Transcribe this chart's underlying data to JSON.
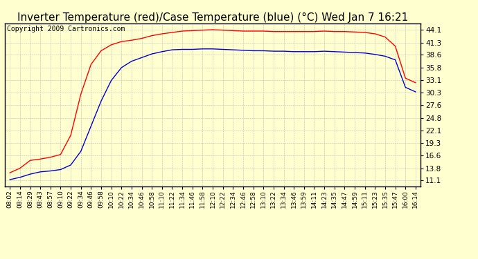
{
  "title": "Inverter Temperature (red)/Case Temperature (blue) (°C) Wed Jan 7 16:21",
  "copyright": "Copyright 2009 Cartronics.com",
  "yticks": [
    11.1,
    13.8,
    16.6,
    19.3,
    22.1,
    24.8,
    27.6,
    30.3,
    33.1,
    35.8,
    38.6,
    41.3,
    44.1
  ],
  "ylim": [
    9.8,
    45.5
  ],
  "xtick_labels": [
    "08:02",
    "08:14",
    "08:29",
    "08:43",
    "08:57",
    "09:10",
    "09:22",
    "09:34",
    "09:46",
    "09:58",
    "10:10",
    "10:22",
    "10:34",
    "10:46",
    "10:58",
    "11:10",
    "11:22",
    "11:34",
    "11:46",
    "11:58",
    "12:10",
    "12:22",
    "12:34",
    "12:46",
    "12:58",
    "13:10",
    "13:22",
    "13:34",
    "13:46",
    "13:59",
    "14:11",
    "14:23",
    "14:35",
    "14:47",
    "14:59",
    "15:11",
    "15:23",
    "15:35",
    "15:47",
    "16:00",
    "16:14"
  ],
  "red_values": [
    12.8,
    13.8,
    15.5,
    15.8,
    16.2,
    16.8,
    21.0,
    30.0,
    36.5,
    39.5,
    40.8,
    41.5,
    41.8,
    42.2,
    42.8,
    43.2,
    43.5,
    43.8,
    43.9,
    44.0,
    44.1,
    44.0,
    43.9,
    43.8,
    43.8,
    43.8,
    43.7,
    43.7,
    43.7,
    43.7,
    43.7,
    43.8,
    43.7,
    43.7,
    43.6,
    43.5,
    43.2,
    42.5,
    40.5,
    33.5,
    32.5
  ],
  "blue_values": [
    11.3,
    11.8,
    12.5,
    13.0,
    13.2,
    13.5,
    14.5,
    17.5,
    23.0,
    28.5,
    33.0,
    35.8,
    37.2,
    38.0,
    38.8,
    39.3,
    39.7,
    39.8,
    39.8,
    39.9,
    39.9,
    39.8,
    39.7,
    39.6,
    39.5,
    39.5,
    39.4,
    39.4,
    39.3,
    39.3,
    39.3,
    39.4,
    39.3,
    39.2,
    39.1,
    39.0,
    38.7,
    38.3,
    37.5,
    31.5,
    30.5
  ],
  "background_color": "#FFFFD0",
  "grid_color": "#BBBBBB",
  "line_color_red": "#FF0000",
  "line_color_blue": "#0000CC",
  "title_fontsize": 11,
  "copyright_fontsize": 7,
  "tick_fontsize": 7.5,
  "xtick_fontsize": 6.5
}
